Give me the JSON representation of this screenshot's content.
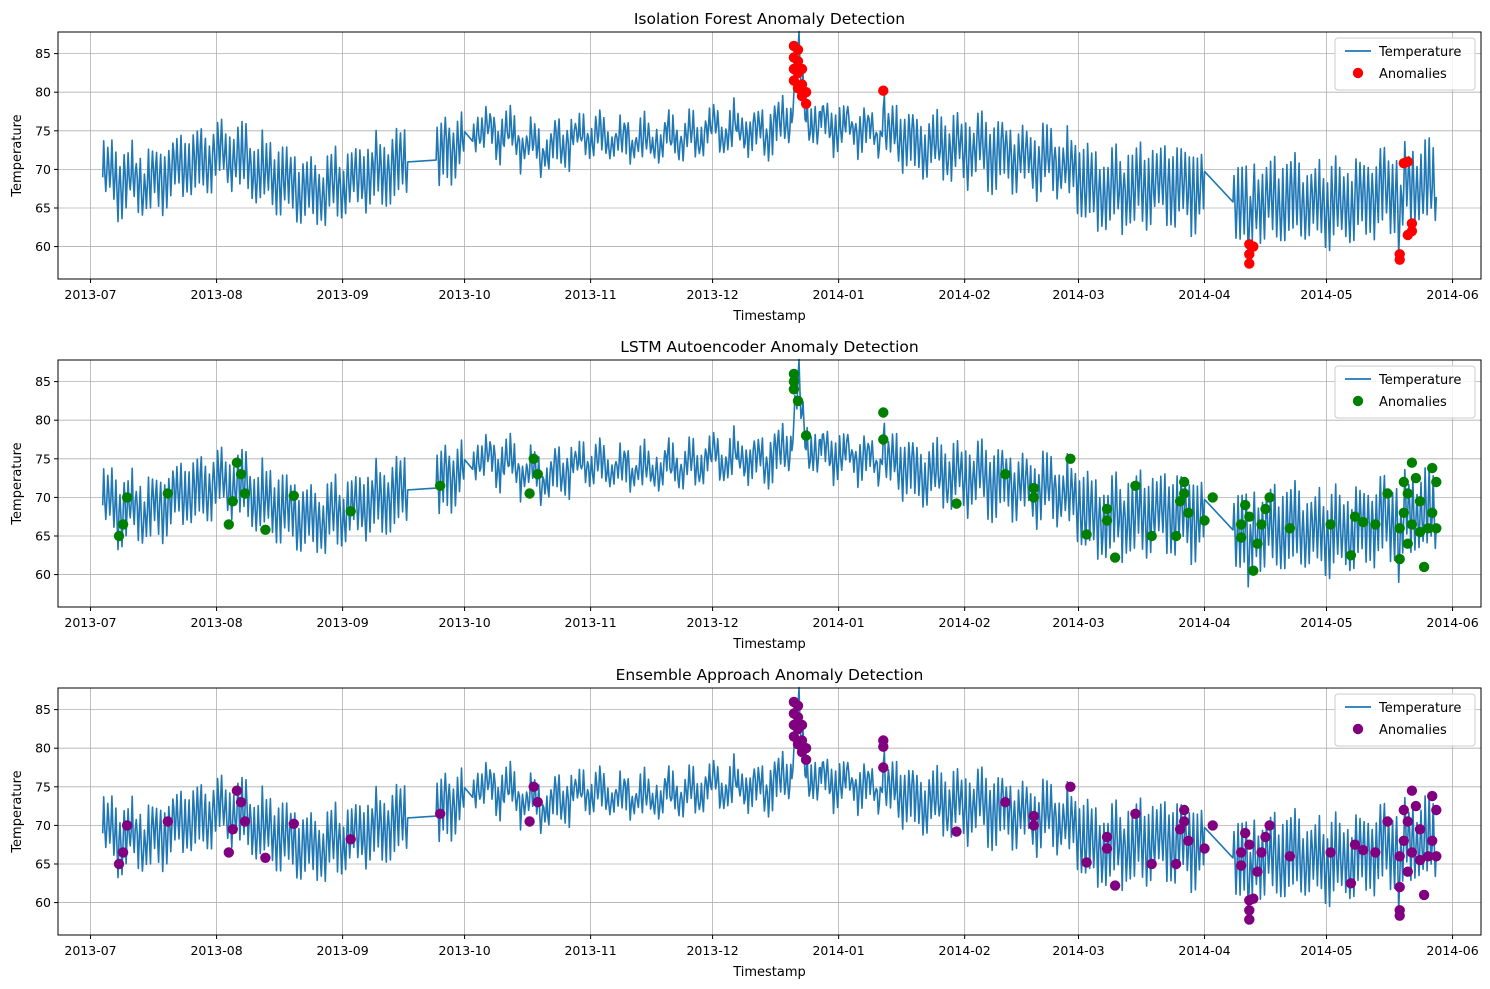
{
  "chart_data": [
    {
      "type": "line+scatter",
      "title": "Isolation Forest Anomaly Detection",
      "xlabel": "Timestamp",
      "ylabel": "Temperature",
      "xlim": [
        "2013-06-23",
        "2014-06-08"
      ],
      "ylim": [
        55.8,
        87.8
      ],
      "x_ticks": [
        "2013-07",
        "2013-08",
        "2013-09",
        "2013-10",
        "2013-11",
        "2013-12",
        "2014-01",
        "2014-02",
        "2014-03",
        "2014-04",
        "2014-05",
        "2014-06"
      ],
      "y_ticks": [
        60,
        65,
        70,
        75,
        80,
        85
      ],
      "grid": true,
      "legend": "top-right",
      "line_color": "#1f77b4",
      "anomaly_color": "#ff0000",
      "series": [
        {
          "name": "Temperature",
          "kind": "line",
          "x_start": "2013-07-04",
          "x_end": "2014-05-28"
        },
        {
          "name": "Anomalies",
          "kind": "scatter",
          "points": [
            [
              "2013-12-21",
              86.0
            ],
            [
              "2013-12-21",
              84.5
            ],
            [
              "2013-12-21",
              83.0
            ],
            [
              "2013-12-21",
              81.5
            ],
            [
              "2013-12-22",
              85.5
            ],
            [
              "2013-12-22",
              84.0
            ],
            [
              "2013-12-22",
              82.5
            ],
            [
              "2013-12-22",
              80.5
            ],
            [
              "2013-12-23",
              83.0
            ],
            [
              "2013-12-23",
              81.0
            ],
            [
              "2013-12-23",
              79.5
            ],
            [
              "2013-12-24",
              80.0
            ],
            [
              "2013-12-24",
              78.5
            ],
            [
              "2014-01-12",
              80.2
            ],
            [
              "2014-04-12",
              60.3
            ],
            [
              "2014-04-12",
              59.0
            ],
            [
              "2014-04-12",
              57.8
            ],
            [
              "2014-04-13",
              60.0
            ],
            [
              "2014-05-19",
              58.3
            ],
            [
              "2014-05-19",
              59.0
            ],
            [
              "2014-05-20",
              70.8
            ],
            [
              "2014-05-21",
              71.0
            ],
            [
              "2014-05-21",
              61.5
            ],
            [
              "2014-05-22",
              63.0
            ],
            [
              "2014-05-22",
              62.0
            ]
          ]
        }
      ]
    },
    {
      "type": "line+scatter",
      "title": "LSTM Autoencoder Anomaly Detection",
      "xlabel": "Timestamp",
      "ylabel": "Temperature",
      "xlim": [
        "2013-06-23",
        "2014-06-08"
      ],
      "ylim": [
        55.8,
        87.8
      ],
      "x_ticks": [
        "2013-07",
        "2013-08",
        "2013-09",
        "2013-10",
        "2013-11",
        "2013-12",
        "2014-01",
        "2014-02",
        "2014-03",
        "2014-04",
        "2014-05",
        "2014-06"
      ],
      "y_ticks": [
        60,
        65,
        70,
        75,
        80,
        85
      ],
      "grid": true,
      "legend": "top-right",
      "line_color": "#1f77b4",
      "anomaly_color": "#008000",
      "series": [
        {
          "name": "Temperature",
          "kind": "line",
          "x_start": "2013-07-04",
          "x_end": "2014-05-28"
        },
        {
          "name": "Anomalies",
          "kind": "scatter",
          "points": [
            [
              "2013-07-08",
              65.0
            ],
            [
              "2013-07-09",
              66.5
            ],
            [
              "2013-07-10",
              70.0
            ],
            [
              "2013-07-20",
              70.5
            ],
            [
              "2013-08-04",
              66.5
            ],
            [
              "2013-08-05",
              69.5
            ],
            [
              "2013-08-06",
              74.5
            ],
            [
              "2013-08-07",
              73.0
            ],
            [
              "2013-08-08",
              70.5
            ],
            [
              "2013-08-13",
              65.8
            ],
            [
              "2013-08-20",
              70.2
            ],
            [
              "2013-09-03",
              68.2
            ],
            [
              "2013-09-25",
              71.5
            ],
            [
              "2013-10-17",
              70.5
            ],
            [
              "2013-10-18",
              75.0
            ],
            [
              "2013-10-19",
              73.0
            ],
            [
              "2013-12-21",
              86.0
            ],
            [
              "2013-12-21",
              84.0
            ],
            [
              "2013-12-22",
              82.5
            ],
            [
              "2013-12-21",
              85.0
            ],
            [
              "2013-12-24",
              78.0
            ],
            [
              "2014-01-12",
              81.0
            ],
            [
              "2014-01-12",
              77.5
            ],
            [
              "2014-01-30",
              69.2
            ],
            [
              "2014-02-11",
              73.0
            ],
            [
              "2014-02-18",
              70.0
            ],
            [
              "2014-02-18",
              71.2
            ],
            [
              "2014-02-27",
              75.0
            ],
            [
              "2014-03-03",
              65.2
            ],
            [
              "2014-03-08",
              68.5
            ],
            [
              "2014-03-08",
              67.0
            ],
            [
              "2014-03-10",
              62.2
            ],
            [
              "2014-03-15",
              71.5
            ],
            [
              "2014-03-19",
              65.0
            ],
            [
              "2014-03-25",
              65.0
            ],
            [
              "2014-03-26",
              69.5
            ],
            [
              "2014-03-27",
              72.0
            ],
            [
              "2014-03-27",
              70.5
            ],
            [
              "2014-03-28",
              68.0
            ],
            [
              "2014-04-01",
              67.0
            ],
            [
              "2014-04-03",
              70.0
            ],
            [
              "2014-04-10",
              66.5
            ],
            [
              "2014-04-10",
              64.8
            ],
            [
              "2014-04-11",
              69.0
            ],
            [
              "2014-04-12",
              67.5
            ],
            [
              "2014-04-13",
              60.5
            ],
            [
              "2014-04-14",
              64.0
            ],
            [
              "2014-04-15",
              66.5
            ],
            [
              "2014-04-16",
              68.5
            ],
            [
              "2014-04-17",
              70.0
            ],
            [
              "2014-04-22",
              66.0
            ],
            [
              "2014-05-02",
              66.5
            ],
            [
              "2014-05-07",
              62.5
            ],
            [
              "2014-05-08",
              67.5
            ],
            [
              "2014-05-10",
              66.8
            ],
            [
              "2014-05-13",
              66.5
            ],
            [
              "2014-05-16",
              70.5
            ],
            [
              "2014-05-19",
              62.0
            ],
            [
              "2014-05-19",
              66.0
            ],
            [
              "2014-05-20",
              68.0
            ],
            [
              "2014-05-20",
              72.0
            ],
            [
              "2014-05-21",
              70.5
            ],
            [
              "2014-05-21",
              64.0
            ],
            [
              "2014-05-22",
              74.5
            ],
            [
              "2014-05-22",
              66.5
            ],
            [
              "2014-05-23",
              72.5
            ],
            [
              "2014-05-24",
              69.5
            ],
            [
              "2014-05-24",
              65.5
            ],
            [
              "2014-05-25",
              61.0
            ],
            [
              "2014-05-26",
              66.0
            ],
            [
              "2014-05-27",
              73.8
            ],
            [
              "2014-05-27",
              68.0
            ],
            [
              "2014-05-28",
              72.0
            ],
            [
              "2014-05-28",
              66.0
            ]
          ]
        }
      ]
    },
    {
      "type": "line+scatter",
      "title": "Ensemble Approach Anomaly Detection",
      "xlabel": "Timestamp",
      "ylabel": "Temperature",
      "xlim": [
        "2013-06-23",
        "2014-06-08"
      ],
      "ylim": [
        55.8,
        87.8
      ],
      "x_ticks": [
        "2013-07",
        "2013-08",
        "2013-09",
        "2013-10",
        "2013-11",
        "2013-12",
        "2014-01",
        "2014-02",
        "2014-03",
        "2014-04",
        "2014-05",
        "2014-06"
      ],
      "y_ticks": [
        60,
        65,
        70,
        75,
        80,
        85
      ],
      "grid": true,
      "legend": "top-right",
      "line_color": "#1f77b4",
      "anomaly_color": "#800080",
      "series": [
        {
          "name": "Temperature",
          "kind": "line",
          "x_start": "2013-07-04",
          "x_end": "2014-05-28"
        },
        {
          "name": "Anomalies",
          "kind": "scatter",
          "points": [
            [
              "2013-07-08",
              65.0
            ],
            [
              "2013-07-09",
              66.5
            ],
            [
              "2013-07-10",
              70.0
            ],
            [
              "2013-07-20",
              70.5
            ],
            [
              "2013-08-04",
              66.5
            ],
            [
              "2013-08-05",
              69.5
            ],
            [
              "2013-08-06",
              74.5
            ],
            [
              "2013-08-07",
              73.0
            ],
            [
              "2013-08-08",
              70.5
            ],
            [
              "2013-08-13",
              65.8
            ],
            [
              "2013-08-20",
              70.2
            ],
            [
              "2013-09-03",
              68.2
            ],
            [
              "2013-09-25",
              71.5
            ],
            [
              "2013-10-17",
              70.5
            ],
            [
              "2013-10-18",
              75.0
            ],
            [
              "2013-10-19",
              73.0
            ],
            [
              "2013-12-21",
              86.0
            ],
            [
              "2013-12-21",
              84.5
            ],
            [
              "2013-12-21",
              83.0
            ],
            [
              "2013-12-21",
              81.5
            ],
            [
              "2013-12-22",
              85.5
            ],
            [
              "2013-12-22",
              84.0
            ],
            [
              "2013-12-22",
              82.5
            ],
            [
              "2013-12-22",
              80.5
            ],
            [
              "2013-12-23",
              83.0
            ],
            [
              "2013-12-23",
              81.0
            ],
            [
              "2013-12-23",
              79.5
            ],
            [
              "2013-12-24",
              80.0
            ],
            [
              "2013-12-24",
              78.5
            ],
            [
              "2014-01-12",
              81.0
            ],
            [
              "2014-01-12",
              80.2
            ],
            [
              "2014-01-12",
              77.5
            ],
            [
              "2014-01-30",
              69.2
            ],
            [
              "2014-02-11",
              73.0
            ],
            [
              "2014-02-18",
              70.0
            ],
            [
              "2014-02-18",
              71.2
            ],
            [
              "2014-02-27",
              75.0
            ],
            [
              "2014-03-03",
              65.2
            ],
            [
              "2014-03-08",
              68.5
            ],
            [
              "2014-03-08",
              67.0
            ],
            [
              "2014-03-10",
              62.2
            ],
            [
              "2014-03-15",
              71.5
            ],
            [
              "2014-03-19",
              65.0
            ],
            [
              "2014-03-25",
              65.0
            ],
            [
              "2014-03-26",
              69.5
            ],
            [
              "2014-03-27",
              72.0
            ],
            [
              "2014-03-27",
              70.5
            ],
            [
              "2014-03-28",
              68.0
            ],
            [
              "2014-04-01",
              67.0
            ],
            [
              "2014-04-03",
              70.0
            ],
            [
              "2014-04-10",
              66.5
            ],
            [
              "2014-04-10",
              64.8
            ],
            [
              "2014-04-11",
              69.0
            ],
            [
              "2014-04-12",
              67.5
            ],
            [
              "2014-04-12",
              60.3
            ],
            [
              "2014-04-12",
              59.0
            ],
            [
              "2014-04-12",
              57.8
            ],
            [
              "2014-04-13",
              60.5
            ],
            [
              "2014-04-14",
              64.0
            ],
            [
              "2014-04-15",
              66.5
            ],
            [
              "2014-04-16",
              68.5
            ],
            [
              "2014-04-17",
              70.0
            ],
            [
              "2014-04-22",
              66.0
            ],
            [
              "2014-05-02",
              66.5
            ],
            [
              "2014-05-07",
              62.5
            ],
            [
              "2014-05-08",
              67.5
            ],
            [
              "2014-05-10",
              66.8
            ],
            [
              "2014-05-13",
              66.5
            ],
            [
              "2014-05-16",
              70.5
            ],
            [
              "2014-05-19",
              58.3
            ],
            [
              "2014-05-19",
              59.0
            ],
            [
              "2014-05-19",
              62.0
            ],
            [
              "2014-05-19",
              66.0
            ],
            [
              "2014-05-20",
              68.0
            ],
            [
              "2014-05-20",
              72.0
            ],
            [
              "2014-05-21",
              70.5
            ],
            [
              "2014-05-21",
              64.0
            ],
            [
              "2014-05-22",
              74.5
            ],
            [
              "2014-05-22",
              66.5
            ],
            [
              "2014-05-23",
              72.5
            ],
            [
              "2014-05-24",
              69.5
            ],
            [
              "2014-05-24",
              65.5
            ],
            [
              "2014-05-25",
              61.0
            ],
            [
              "2014-05-26",
              66.0
            ],
            [
              "2014-05-27",
              73.8
            ],
            [
              "2014-05-27",
              68.0
            ],
            [
              "2014-05-28",
              72.0
            ],
            [
              "2014-05-28",
              66.0
            ]
          ]
        }
      ]
    }
  ]
}
